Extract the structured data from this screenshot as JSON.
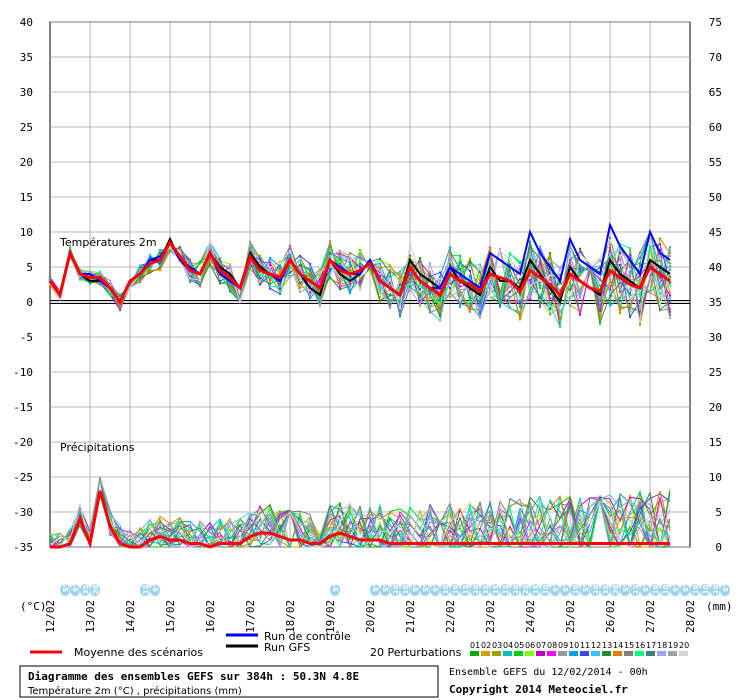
{
  "chart_data": {
    "type": "line",
    "section_temp_label": "Températures 2m",
    "section_precip_label": "Précipitations",
    "left_axis": {
      "ticks": [
        40,
        35,
        30,
        25,
        20,
        15,
        10,
        5,
        0,
        -5,
        -10,
        -15,
        -20,
        -25,
        -30,
        -35
      ],
      "range": [
        -35,
        40
      ]
    },
    "right_axis": {
      "ticks": [
        75,
        70,
        65,
        60,
        55,
        50,
        45,
        40,
        35,
        30,
        25,
        20,
        15,
        10,
        5,
        0
      ]
    },
    "left_unit": "(°C)",
    "right_unit": "(mm)",
    "dates": [
      "12/02",
      "13/02",
      "14/02",
      "15/02",
      "16/02",
      "17/02",
      "18/02",
      "19/02",
      "20/02",
      "21/02",
      "22/02",
      "23/02",
      "24/02",
      "25/02",
      "26/02",
      "27/02",
      "28/02"
    ],
    "steps_per_day": 4,
    "mean_temp": [
      3,
      1,
      7,
      4,
      3.5,
      3.5,
      2,
      0,
      3,
      4,
      5.5,
      6,
      8.5,
      6.5,
      4.5,
      4,
      7,
      4.5,
      3.5,
      2,
      6.5,
      4.5,
      4,
      3.5,
      6,
      4,
      3,
      2,
      6,
      4.5,
      4,
      4.5,
      5.5,
      3,
      2,
      1,
      5,
      3,
      2,
      1,
      4,
      3,
      2.5,
      1.5,
      4,
      3.5,
      3,
      1.5,
      4.5,
      3.5,
      2.5,
      1,
      4,
      3,
      2,
      1.5,
      4.5,
      3.5,
      2.5,
      2,
      5,
      4,
      3
    ],
    "control_temp": [
      3,
      1,
      7,
      4,
      4,
      3,
      2,
      0,
      3,
      4,
      6,
      6.5,
      8.5,
      6,
      5,
      4,
      7,
      4,
      3,
      2,
      6.5,
      4.5,
      4,
      3,
      6,
      4,
      3,
      2,
      6,
      5,
      4,
      4,
      6,
      3,
      2,
      1,
      5,
      3,
      2,
      2,
      5,
      4,
      3,
      2,
      7,
      6,
      5,
      4,
      10,
      7,
      5,
      3,
      9,
      6,
      5,
      4,
      11,
      8,
      6,
      4,
      10,
      7,
      6
    ],
    "gfs_temp": [
      3,
      1,
      7,
      4,
      3,
      3,
      2,
      0,
      3,
      4,
      6,
      6,
      9,
      6,
      4.5,
      4,
      7,
      5,
      4,
      2,
      7,
      5,
      4,
      3,
      6,
      4,
      2,
      1,
      6,
      4,
      3,
      4,
      6,
      3,
      2,
      1,
      6,
      4,
      3,
      2,
      5,
      3,
      2,
      1,
      5,
      3,
      3,
      2,
      6,
      4,
      2,
      0,
      5,
      3,
      2,
      1,
      6,
      4,
      3,
      2,
      6,
      5,
      4
    ],
    "mean_precip_mm": [
      0,
      0,
      0.5,
      4,
      0.5,
      8,
      3,
      0.5,
      0,
      0,
      1,
      1.5,
      1,
      1,
      0.5,
      0.5,
      0,
      0.5,
      0.5,
      0.5,
      1.5,
      2,
      2,
      1.5,
      1,
      1,
      0.5,
      0.5,
      1.5,
      2,
      1.5,
      1,
      1,
      1,
      0.5,
      0.5,
      0.5,
      0.5,
      0.5,
      0.5,
      0.5,
      0.5,
      0.5,
      0.5,
      0.5,
      0.5,
      0.5,
      0.5,
      0.5,
      0.5,
      0.5,
      0.5,
      0.5,
      0.5,
      0.5,
      0.5,
      0.5,
      0.5,
      0.5,
      0.5,
      0.5,
      0.5,
      0.5
    ],
    "precip_probabilities": [
      {
        "day_index": 0.25,
        "labels": [
          "5%",
          "5%",
          "35%",
          "20%"
        ]
      },
      {
        "day_index": 2.25,
        "labels": [
          "15%",
          "5%"
        ]
      },
      {
        "day_index": 7.0,
        "labels": [
          "5%"
        ]
      },
      {
        "day_index": 8.0,
        "labels": [
          "5%",
          "5%",
          "10%",
          "10%",
          "5%",
          "5%",
          "5%",
          "10%",
          "10%",
          "15%",
          "10%",
          "15%",
          "15%",
          "15%",
          "10%",
          "20%",
          "15%",
          "10%",
          "5%",
          "5%"
        ]
      },
      {
        "day_index": 13.0,
        "labels": [
          "10%",
          "5%",
          "10%",
          "15%",
          "20%",
          "5%",
          "15%",
          "5%",
          "10%",
          "10%",
          "5%",
          "5%",
          "10%",
          "10%",
          "10%",
          "5%"
        ]
      }
    ],
    "legend": {
      "mean_label": "Moyenne des scénarios",
      "control_label": "Run de contrôle",
      "gfs_label": "Run GFS",
      "perturb_label": "20 Perturbations",
      "perturb_numbers": [
        "01",
        "02",
        "03",
        "04",
        "05",
        "06",
        "07",
        "08",
        "09",
        "10",
        "11",
        "12",
        "13",
        "14",
        "15",
        "16",
        "17",
        "18",
        "19",
        "20"
      ],
      "colors": {
        "mean": "#ff0000",
        "control": "#0000ff",
        "gfs": "#000000"
      },
      "perturb_colors": [
        "#00aa00",
        "#d2a000",
        "#a0a000",
        "#00c0c0",
        "#00d000",
        "#7fff00",
        "#c000c0",
        "#ff00ff",
        "#9a9a9a",
        "#00a0ff",
        "#4040ff",
        "#40c0ff",
        "#2a8a2a",
        "#e08000",
        "#808080",
        "#00ff80",
        "#408080",
        "#a0a0ff",
        "#a0a0a0",
        "#d4d4d4"
      ]
    }
  },
  "footer": {
    "title": "Diagramme des ensembles GEFS sur 384h : 50.3N 4.8E",
    "subtitle": "Température 2m (°C) , précipitations (mm)",
    "run": "Ensemble GEFS du 12/02/2014 - 00h",
    "copyright": "Copyright 2014 Meteociel.fr"
  }
}
